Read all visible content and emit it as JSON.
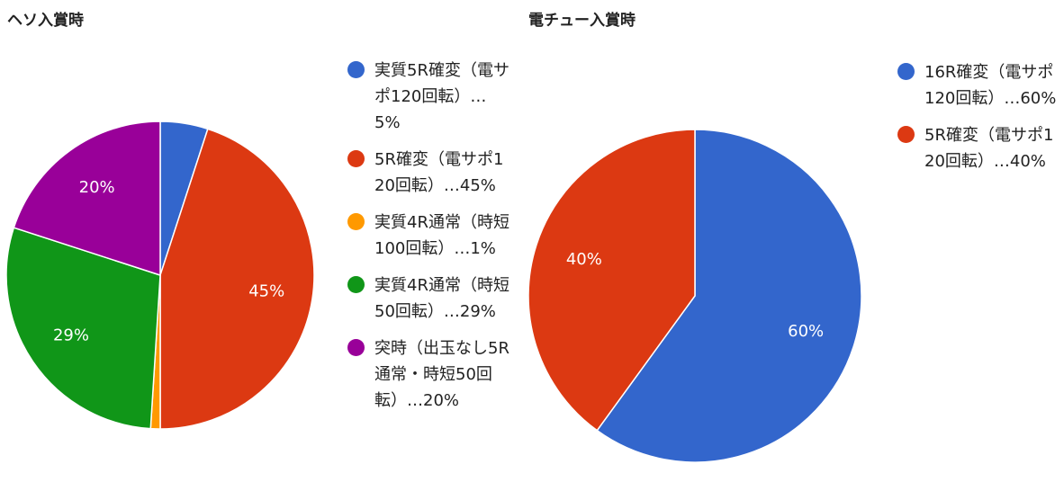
{
  "chart_data": [
    {
      "type": "pie",
      "title": "ヘソ入賞時",
      "legend_position": "right",
      "slices": [
        {
          "label": "実質5R確変（電サポ120回転）…5%",
          "value": 5,
          "data_label": "",
          "color": "#3366cc"
        },
        {
          "label": "5R確変（電サポ120回転）…45%",
          "value": 45,
          "data_label": "45%",
          "color": "#dc3912"
        },
        {
          "label": "実質4R通常（時短100回転）…1%",
          "value": 1,
          "data_label": "",
          "color": "#ff9900"
        },
        {
          "label": "実質4R通常（時短50回転）…29%",
          "value": 29,
          "data_label": "29%",
          "color": "#109618"
        },
        {
          "label": "突時（出玉なし5R通常・時短50回転）…20%",
          "value": 20,
          "data_label": "20%",
          "color": "#990099"
        }
      ]
    },
    {
      "type": "pie",
      "title": "電チュー入賞時",
      "legend_position": "right",
      "slices": [
        {
          "label": "16R確変（電サポ120回転）…60%",
          "value": 60,
          "data_label": "60%",
          "color": "#3366cc"
        },
        {
          "label": "5R確変（電サポ120回転）…40%",
          "value": 40,
          "data_label": "40%",
          "color": "#dc3912"
        }
      ]
    }
  ]
}
